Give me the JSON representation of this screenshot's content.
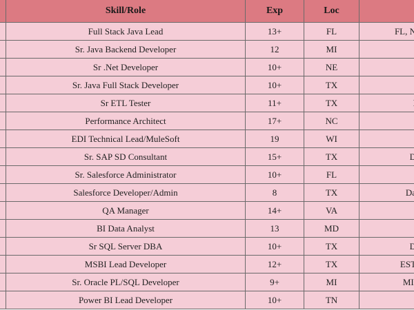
{
  "table": {
    "header": {
      "skill": "Skill/Role",
      "exp": "Exp",
      "loc": "Loc"
    },
    "rows": [
      {
        "skill": "Full Stack Java Lead",
        "exp": "13+",
        "loc": "FL",
        "extra": "FL, N"
      },
      {
        "skill": "Sr. Java Backend Developer",
        "exp": "12",
        "loc": "MI"
      },
      {
        "skill": "Sr .Net Developer",
        "exp": "10+",
        "loc": "NE"
      },
      {
        "skill": "Sr. Java Full Stack Developer",
        "exp": "10+",
        "loc": "TX"
      },
      {
        "skill": "Sr ETL Tester",
        "exp": "11+",
        "loc": "TX",
        "extra": "I"
      },
      {
        "skill": "Performance Architect",
        "exp": "17+",
        "loc": "NC"
      },
      {
        "skill": "EDI Technical Lead/MuleSoft",
        "exp": "19",
        "loc": "WI"
      },
      {
        "skill": "Sr. SAP SD Consultant",
        "exp": "15+",
        "loc": "TX",
        "extra": "D"
      },
      {
        "skill": "Sr. Salesforce Administrator",
        "exp": "10+",
        "loc": "FL"
      },
      {
        "skill": "Salesforce Developer/Admin",
        "exp": "8",
        "loc": "TX",
        "extra": "Da"
      },
      {
        "skill": "QA Manager",
        "exp": "14+",
        "loc": "VA"
      },
      {
        "skill": "BI Data Analyst",
        "exp": "13",
        "loc": "MD"
      },
      {
        "skill": "Sr SQL Server DBA",
        "exp": "10+",
        "loc": "TX",
        "extra": "D"
      },
      {
        "skill": "MSBI Lead Developer",
        "exp": "12+",
        "loc": "TX",
        "extra": "EST"
      },
      {
        "skill": "Sr. Oracle PL/SQL Developer",
        "exp": "9+",
        "loc": "MI",
        "extra": "MI,"
      },
      {
        "skill": "Power BI Lead Developer",
        "exp": "10+",
        "loc": "TN"
      }
    ]
  }
}
